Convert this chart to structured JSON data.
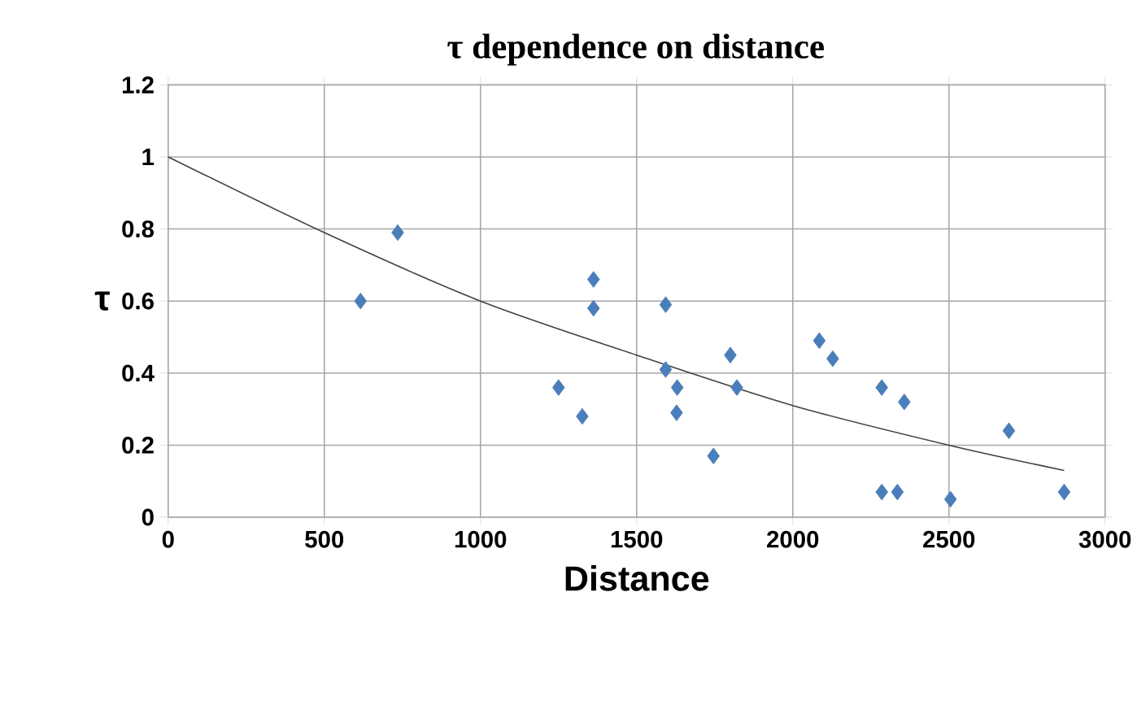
{
  "chart_data": {
    "type": "scatter",
    "title": "τ dependence on distance",
    "xlabel": "Distance",
    "ylabel": "τ",
    "xlim": [
      0,
      3000
    ],
    "xticks": [
      0,
      500,
      1000,
      1500,
      2000,
      2500,
      3000
    ],
    "ylim": [
      0,
      1.2
    ],
    "yticks": [
      0,
      0.2,
      0.4,
      0.6,
      0.8,
      1,
      1.2
    ],
    "grid": true,
    "legend": false,
    "marker": "diamond",
    "series": [
      {
        "color": "#4a7ebb",
        "x": [
          616,
          735,
          1250,
          1326,
          1362,
          1362,
          1593,
          1593,
          1628,
          1630,
          1746,
          1800,
          1821,
          2085,
          2128,
          2285,
          2285,
          2335,
          2357,
          2505,
          2692,
          2869
        ],
        "values": [
          0.6,
          0.79,
          0.36,
          0.28,
          0.66,
          0.58,
          0.59,
          0.41,
          0.29,
          0.36,
          0.17,
          0.45,
          0.36,
          0.49,
          0.44,
          0.36,
          0.07,
          0.07,
          0.32,
          0.05,
          0.24,
          0.07
        ]
      },
      {
        "type": "line",
        "color": "#404040",
        "marker": "none",
        "x": [
          0,
          500,
          1000,
          1500,
          2000,
          2500,
          2869
        ],
        "values": [
          1.0,
          0.79,
          0.6,
          0.45,
          0.31,
          0.2,
          0.13
        ]
      }
    ]
  }
}
